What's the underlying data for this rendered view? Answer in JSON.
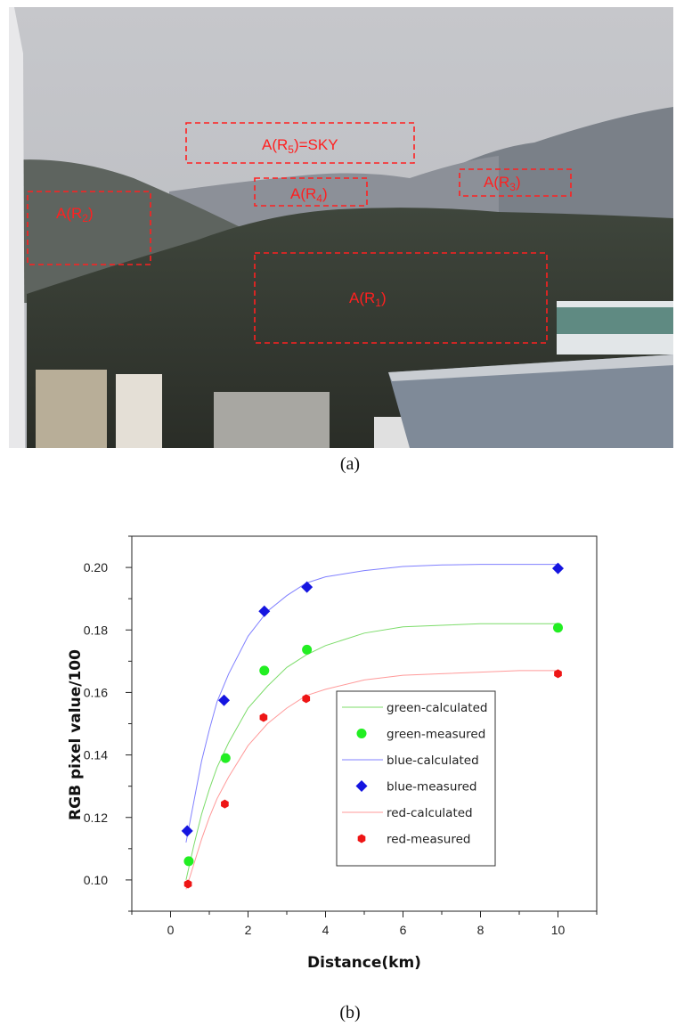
{
  "panel_a": {
    "caption": "(a)",
    "regions": [
      {
        "id": "r5",
        "label": "A(R5)=SKY",
        "main": "A(R",
        "sub": "5",
        "tail": ")=SKY"
      },
      {
        "id": "r2",
        "label": "A(R2)",
        "main": "A(R",
        "sub": "2",
        "tail": ")"
      },
      {
        "id": "r4",
        "label": "A(R4)",
        "main": "A(R",
        "sub": "4",
        "tail": ")"
      },
      {
        "id": "r3",
        "label": "A(R3)",
        "main": "A(R",
        "sub": "3",
        "tail": ")"
      },
      {
        "id": "r1",
        "label": "A(R1)",
        "main": "A(R",
        "sub": "1",
        "tail": ")"
      }
    ]
  },
  "panel_b": {
    "caption": "(b)"
  },
  "chart_data": {
    "type": "scatter",
    "xlabel": "Distance(km)",
    "ylabel": "RGB pixel value/100",
    "xlim": [
      -1,
      11
    ],
    "ylim": [
      0.09,
      0.21
    ],
    "xticks": [
      0,
      2,
      4,
      6,
      8,
      10
    ],
    "yticks": [
      0.1,
      0.12,
      0.14,
      0.16,
      0.18,
      0.2
    ],
    "legend_position": "center-right",
    "grid": false,
    "series": [
      {
        "name": "green-calculated",
        "kind": "line",
        "color": "#7cdc6a",
        "x": [
          0.4,
          0.6,
          0.8,
          1.0,
          1.2,
          1.5,
          2.0,
          2.5,
          3.0,
          3.5,
          4.0,
          5.0,
          6.0,
          7.0,
          8.0,
          9.0,
          10.0
        ],
        "y": [
          0.1,
          0.111,
          0.121,
          0.129,
          0.136,
          0.144,
          0.155,
          0.162,
          0.168,
          0.172,
          0.175,
          0.179,
          0.181,
          0.1815,
          0.182,
          0.182,
          0.182
        ]
      },
      {
        "name": "green-measured",
        "kind": "marker",
        "marker": "circle",
        "color": "#22ee22",
        "x": [
          0.47,
          1.42,
          2.42,
          3.52,
          10.0
        ],
        "y": [
          0.106,
          0.139,
          0.167,
          0.1737,
          0.1807
        ]
      },
      {
        "name": "blue-calculated",
        "kind": "line",
        "color": "#8080ff",
        "x": [
          0.4,
          0.6,
          0.8,
          1.0,
          1.2,
          1.5,
          2.0,
          2.5,
          3.0,
          3.5,
          4.0,
          5.0,
          6.0,
          7.0,
          8.0,
          9.0,
          10.0
        ],
        "y": [
          0.112,
          0.125,
          0.138,
          0.148,
          0.157,
          0.166,
          0.178,
          0.186,
          0.191,
          0.195,
          0.197,
          0.199,
          0.2003,
          0.2008,
          0.201,
          0.201,
          0.201
        ]
      },
      {
        "name": "blue-measured",
        "kind": "marker",
        "marker": "diamond",
        "color": "#1515e0",
        "x": [
          0.43,
          1.38,
          2.42,
          3.52,
          10.0
        ],
        "y": [
          0.1157,
          0.1575,
          0.186,
          0.1937,
          0.1997
        ]
      },
      {
        "name": "red-calculated",
        "kind": "line",
        "color": "#ff9a9a",
        "x": [
          0.4,
          0.6,
          0.8,
          1.0,
          1.2,
          1.5,
          2.0,
          2.5,
          3.0,
          3.5,
          4.0,
          5.0,
          6.0,
          7.0,
          8.0,
          9.0,
          10.0
        ],
        "y": [
          0.097,
          0.105,
          0.113,
          0.12,
          0.126,
          0.133,
          0.143,
          0.15,
          0.155,
          0.159,
          0.161,
          0.164,
          0.1655,
          0.166,
          0.1665,
          0.167,
          0.167
        ]
      },
      {
        "name": "red-measured",
        "kind": "marker",
        "marker": "hexagon",
        "color": "#ee1515",
        "x": [
          0.45,
          1.4,
          2.4,
          3.5,
          10.0
        ],
        "y": [
          0.0987,
          0.1243,
          0.152,
          0.158,
          0.166
        ]
      }
    ]
  }
}
